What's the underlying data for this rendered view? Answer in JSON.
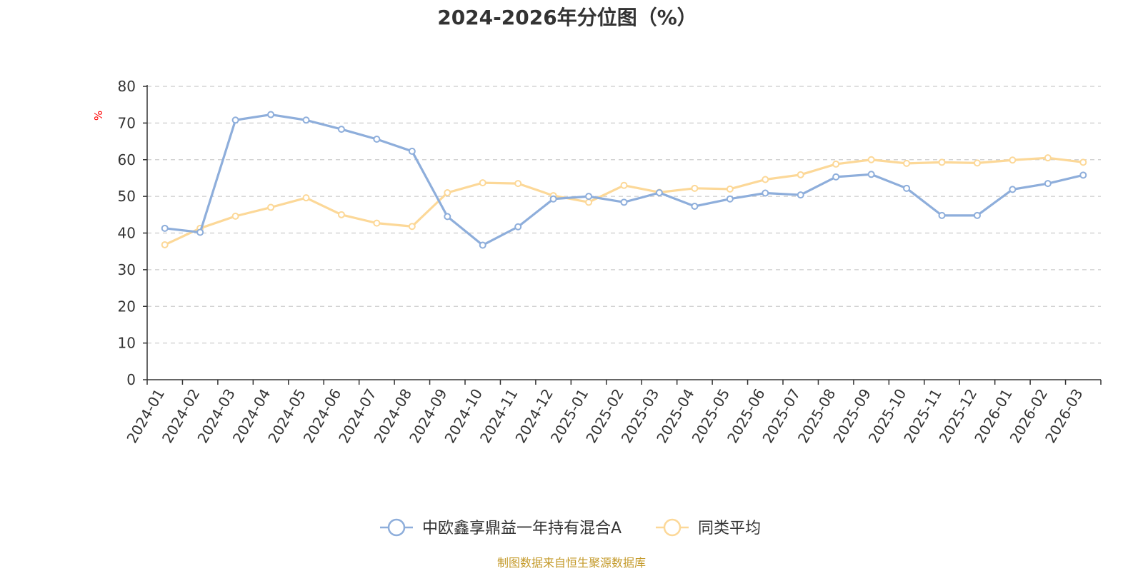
{
  "colors": {
    "fund": "#8eaedb",
    "category_avg": "#fcd898",
    "ylabel": "#ff0000",
    "source": "#c49a2a",
    "grid": "#cccccc",
    "axis": "#333333"
  },
  "chart_data": {
    "type": "line",
    "title": "2024-2026年分位图（%）",
    "ylabel": "%",
    "ylim": [
      0,
      80
    ],
    "yticks": [
      "0",
      "10",
      "20",
      "30",
      "40",
      "50",
      "60",
      "70",
      "80"
    ],
    "grid": true,
    "legend_position": "bottom-center",
    "categories": [
      "2024-01",
      "2024-02",
      "2024-03",
      "2024-04",
      "2024-05",
      "2024-06",
      "2024-07",
      "2024-08",
      "2024-09",
      "2024-10",
      "2024-11",
      "2024-12",
      "2025-01",
      "2025-02",
      "2025-03",
      "2025-04",
      "2025-05",
      "2025-06",
      "2025-07",
      "2025-08",
      "2025-09",
      "2025-10",
      "2025-11",
      "2025-12",
      "2026-01",
      "2026-02",
      "2026-03"
    ],
    "series": [
      {
        "name": "中欧鑫享鼎益一年持有混合A",
        "color": "#8eaedb",
        "values": [
          41.3,
          40.2,
          70.8,
          72.3,
          70.8,
          68.3,
          65.6,
          62.3,
          44.5,
          36.7,
          41.7,
          49.3,
          50.0,
          48.4,
          51.0,
          47.3,
          49.3,
          50.9,
          50.4,
          55.3,
          56.0,
          52.2,
          44.8,
          44.8,
          51.9,
          53.5,
          55.8
        ]
      },
      {
        "name": "同类平均",
        "color": "#fcd898",
        "values": [
          36.8,
          41.3,
          44.6,
          47.0,
          49.6,
          45.0,
          42.7,
          41.8,
          51.0,
          53.7,
          53.5,
          50.2,
          48.4,
          53.0,
          51.1,
          52.2,
          52.0,
          54.6,
          55.9,
          58.8,
          60.0,
          59.0,
          59.3,
          59.1,
          59.9,
          60.5,
          59.3
        ]
      }
    ]
  },
  "source_text": "制图数据来自恒生聚源数据库"
}
